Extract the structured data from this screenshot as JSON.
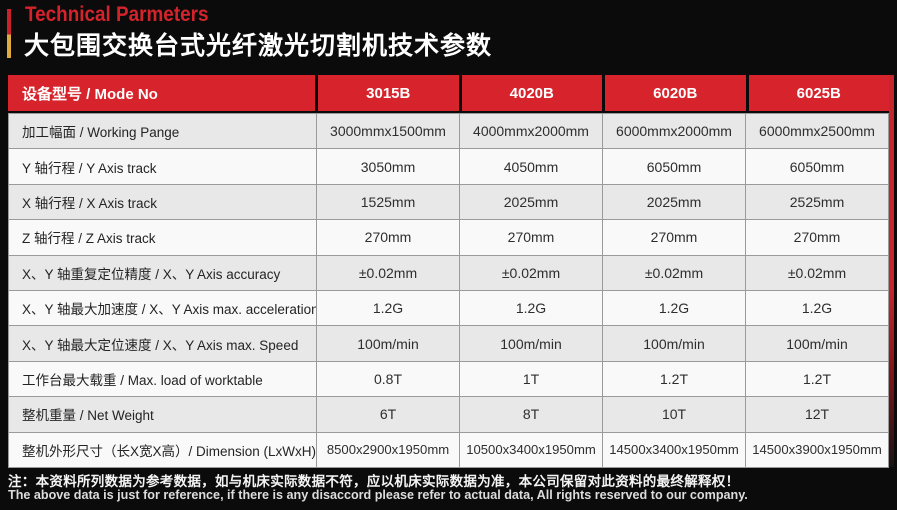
{
  "page": {
    "eyebrow": "Technical Parmeters",
    "title": "大包围交换台式光纤激光切割机技术参数"
  },
  "colors": {
    "accent_red": "#d7232b",
    "accent_yellow": "#ddab3e",
    "row_gray": "#e8e8e8",
    "row_white": "#f9f9f9",
    "background": "#0b0b0b"
  },
  "table": {
    "header": {
      "label": "设备型号 / Mode No",
      "models": [
        "3015B",
        "4020B",
        "6020B",
        "6025B"
      ]
    },
    "rows": [
      {
        "label": "加工幅面 / Working Pange",
        "values": [
          "3000mmx1500mm",
          "4000mmx2000mm",
          "6000mmx2000mm",
          "6000mmx2500mm"
        ]
      },
      {
        "label": "Y 轴行程 / Y Axis track",
        "values": [
          "3050mm",
          "4050mm",
          "6050mm",
          "6050mm"
        ]
      },
      {
        "label": "X 轴行程 / X Axis track",
        "values": [
          "1525mm",
          "2025mm",
          "2025mm",
          "2525mm"
        ]
      },
      {
        "label": "Z 轴行程 / Z Axis track",
        "values": [
          "270mm",
          "270mm",
          "270mm",
          "270mm"
        ]
      },
      {
        "label": "X、Y 轴重复定位精度 / X、Y Axis accuracy",
        "values": [
          "±0.02mm",
          "±0.02mm",
          "±0.02mm",
          "±0.02mm"
        ]
      },
      {
        "label": "X、Y 轴最大加速度 / X、Y Axis max. acceleration",
        "values": [
          "1.2G",
          "1.2G",
          "1.2G",
          "1.2G"
        ]
      },
      {
        "label": "X、Y 轴最大定位速度 / X、Y Axis max. Speed",
        "values": [
          "100m/min",
          "100m/min",
          "100m/min",
          "100m/min"
        ]
      },
      {
        "label": "工作台最大载重 / Max. load of worktable",
        "values": [
          "0.8T",
          "1T",
          "1.2T",
          "1.2T"
        ]
      },
      {
        "label": "整机重量 / Net Weight",
        "values": [
          "6T",
          "8T",
          "10T",
          "12T"
        ]
      },
      {
        "label": "整机外形尺寸（长X宽X高）/ Dimension (LxWxH)",
        "values": [
          "8500x2900x1950mm",
          "10500x3400x1950mm",
          "14500x3400x1950mm",
          "14500x3900x1950mm"
        ]
      }
    ]
  },
  "footer": {
    "note_zh": "注：本资料所列数据为参考数据，如与机床实际数据不符，应以机床实际数据为准，本公司保留对此资料的最终解释权！",
    "note_en": "The above data is just for reference, if there is any disaccord please refer to actual data, All rights reserved to our company."
  }
}
